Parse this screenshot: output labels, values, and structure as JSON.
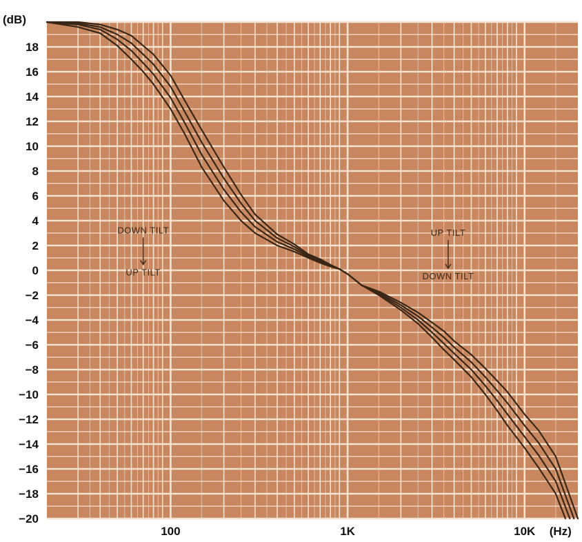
{
  "chart_data": {
    "type": "line",
    "xscale": "log",
    "xlim": [
      20,
      20000
    ],
    "ylim": [
      -20,
      20
    ],
    "ylabel": "(dB)",
    "xunit": "(Hz)",
    "x_ticks": [
      {
        "value": 100,
        "label": "100"
      },
      {
        "value": 1000,
        "label": "1K"
      },
      {
        "value": 10000,
        "label": "10K"
      }
    ],
    "y_ticks": [
      18,
      16,
      14,
      12,
      10,
      8,
      6,
      4,
      2,
      0,
      -2,
      -4,
      -6,
      -8,
      -10,
      -12,
      -14,
      -16,
      -18,
      -20
    ],
    "grid": true,
    "colors": {
      "background": "#c8875e",
      "grid": "#f6e3d2",
      "curve": "#3a2616"
    },
    "annotations": [
      {
        "text_top": "DOWN TILT",
        "text_bottom": "UP TILT",
        "x": 70,
        "y_top": 3.2,
        "y_bottom": -0.2
      },
      {
        "text_top": "UP TILT",
        "text_bottom": "DOWN TILT",
        "x": 3700,
        "y_top": 3.0,
        "y_bottom": -0.5
      }
    ],
    "series": [
      {
        "x": [
          20,
          30,
          40,
          50,
          60,
          70,
          80,
          100,
          120,
          150,
          200,
          250,
          300,
          400,
          500,
          600,
          700,
          800,
          900,
          1000,
          1200,
          1500,
          2000,
          2500,
          3000,
          3500,
          4000,
          5000,
          6000,
          7000,
          8000,
          10000,
          12000,
          15000,
          17000
        ],
        "y": [
          20,
          19.6,
          19.1,
          18.1,
          17.0,
          16.0,
          15.0,
          13.0,
          11.0,
          8.3,
          5.6,
          4.0,
          3.0,
          2.0,
          1.5,
          1.0,
          0.6,
          0.3,
          0.1,
          -0.3,
          -1.2,
          -2.0,
          -3.2,
          -4.3,
          -5.4,
          -6.4,
          -7.2,
          -8.6,
          -10.0,
          -11.3,
          -12.5,
          -14.3,
          -15.9,
          -18.0,
          -20
        ]
      },
      {
        "x": [
          20,
          30,
          40,
          50,
          60,
          70,
          80,
          100,
          120,
          150,
          200,
          250,
          300,
          400,
          500,
          600,
          700,
          800,
          900,
          1000,
          1200,
          1500,
          2000,
          2500,
          3000,
          3500,
          4000,
          5000,
          6000,
          7000,
          8000,
          10000,
          12000,
          15000,
          18000
        ],
        "y": [
          20,
          19.8,
          19.4,
          18.6,
          17.7,
          16.7,
          15.8,
          13.9,
          11.9,
          9.3,
          6.5,
          4.7,
          3.5,
          2.3,
          1.7,
          1.1,
          0.7,
          0.35,
          0.1,
          -0.3,
          -1.2,
          -1.9,
          -3.0,
          -4.0,
          -5.0,
          -5.9,
          -6.7,
          -8.0,
          -9.3,
          -10.5,
          -11.6,
          -13.4,
          -14.9,
          -17.0,
          -20
        ]
      },
      {
        "x": [
          20,
          30,
          40,
          50,
          60,
          70,
          80,
          100,
          120,
          150,
          200,
          250,
          300,
          400,
          500,
          600,
          700,
          800,
          900,
          1000,
          1200,
          1500,
          2000,
          2500,
          3000,
          3500,
          4000,
          5000,
          6000,
          7000,
          8000,
          10000,
          12000,
          15000,
          19000
        ],
        "y": [
          20,
          19.9,
          19.6,
          19.0,
          18.3,
          17.4,
          16.6,
          14.8,
          12.8,
          10.3,
          7.4,
          5.4,
          4.0,
          2.6,
          1.9,
          1.2,
          0.8,
          0.4,
          0.1,
          -0.3,
          -1.2,
          -1.8,
          -2.8,
          -3.7,
          -4.6,
          -5.4,
          -6.2,
          -7.4,
          -8.6,
          -9.7,
          -10.7,
          -12.5,
          -13.9,
          -16.0,
          -20
        ]
      },
      {
        "x": [
          20,
          30,
          40,
          50,
          60,
          70,
          80,
          100,
          120,
          150,
          200,
          250,
          300,
          400,
          500,
          600,
          700,
          800,
          900,
          1000,
          1200,
          1500,
          2000,
          2500,
          3000,
          3500,
          4000,
          5000,
          6000,
          7000,
          8000,
          10000,
          12000,
          15000,
          20000
        ],
        "y": [
          20,
          20.0,
          19.8,
          19.4,
          18.9,
          18.1,
          17.4,
          15.7,
          13.7,
          11.3,
          8.3,
          6.1,
          4.5,
          2.9,
          2.1,
          1.3,
          0.9,
          0.45,
          0.1,
          -0.3,
          -1.2,
          -1.7,
          -2.6,
          -3.4,
          -4.2,
          -4.9,
          -5.7,
          -6.8,
          -7.9,
          -8.9,
          -9.8,
          -11.6,
          -12.9,
          -15.0,
          -20
        ]
      }
    ]
  }
}
